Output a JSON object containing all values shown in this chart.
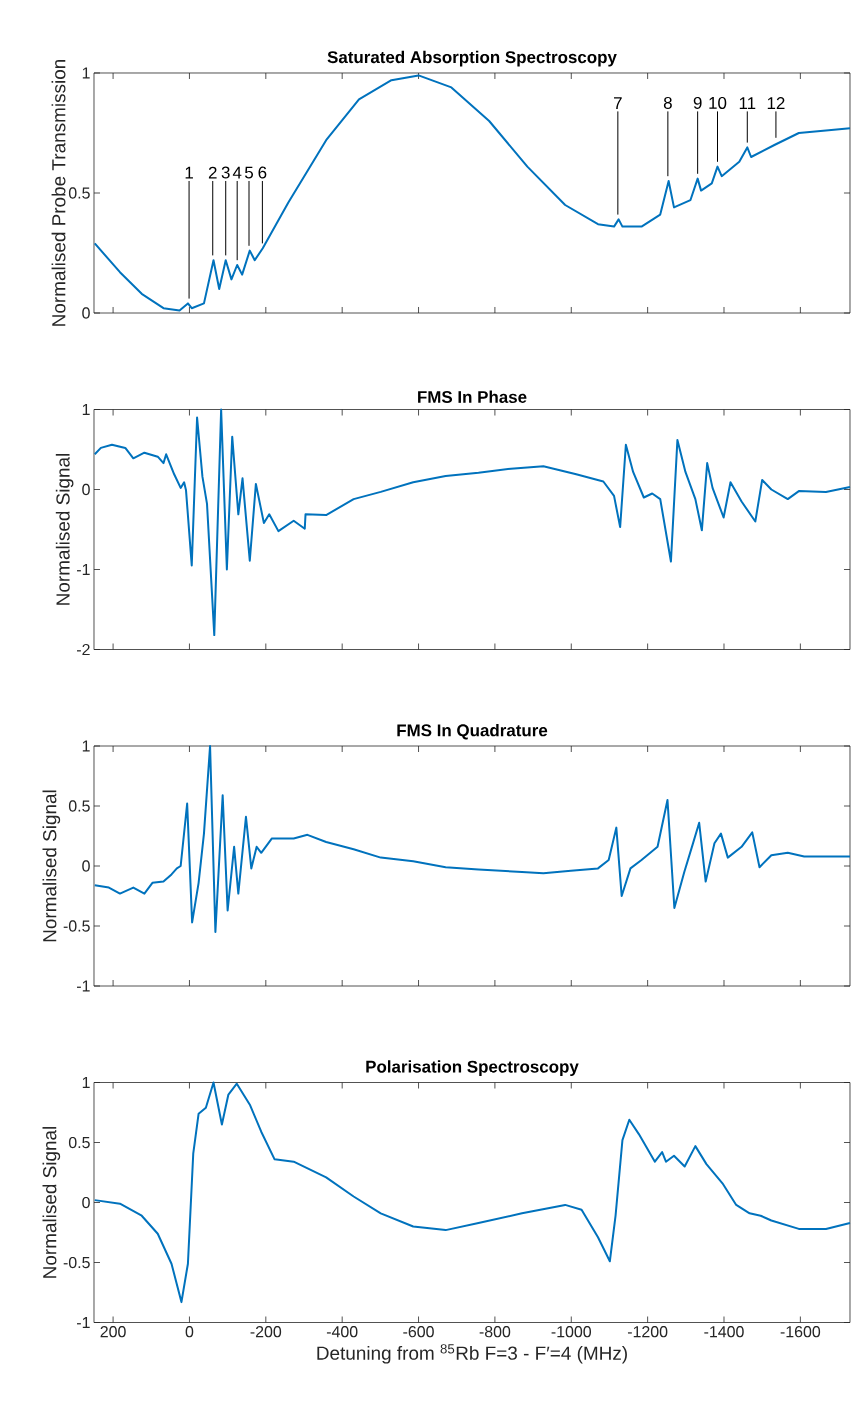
{
  "chart_data": [
    {
      "type": "line",
      "title": "Saturated Absorption Spectroscopy",
      "ylabel": "Normalised Probe Transmission",
      "color": "#0072bd",
      "xlim": [
        250,
        -1730
      ],
      "ylim": [
        0,
        1
      ],
      "xticks": [
        200,
        0,
        -200,
        -400,
        -600,
        -800,
        -1000,
        -1200,
        -1400,
        -1600
      ],
      "yticks": [
        0,
        0.5,
        1
      ],
      "tick_labels": "y",
      "x": [
        248,
        182,
        125,
        68,
        26,
        4,
        -6,
        -38,
        -63,
        -78,
        -95,
        -110,
        -125,
        -138,
        -158,
        -171,
        -192,
        -259,
        -358,
        -444,
        -529,
        -600,
        -686,
        -785,
        -885,
        -984,
        -1070,
        -1112,
        -1124,
        -1134,
        -1184,
        -1233,
        -1255,
        -1269,
        -1312,
        -1331,
        -1340,
        -1368,
        -1383,
        -1394,
        -1440,
        -1461,
        -1471,
        -1532,
        -1596,
        -1667,
        -1730
      ],
      "values": [
        0.29,
        0.17,
        0.08,
        0.02,
        0.01,
        0.04,
        0.02,
        0.04,
        0.22,
        0.1,
        0.22,
        0.14,
        0.2,
        0.16,
        0.26,
        0.22,
        0.27,
        0.46,
        0.72,
        0.89,
        0.97,
        0.99,
        0.94,
        0.8,
        0.61,
        0.45,
        0.37,
        0.36,
        0.39,
        0.36,
        0.36,
        0.41,
        0.55,
        0.44,
        0.47,
        0.56,
        0.51,
        0.54,
        0.61,
        0.57,
        0.63,
        0.69,
        0.65,
        0.7,
        0.75,
        0.76,
        0.77
      ],
      "annotations": [
        {
          "text": "1",
          "x": 1,
          "y": 0.04
        },
        {
          "text": "2",
          "x": -61,
          "y": 0.22
        },
        {
          "text": "3",
          "x": -95,
          "y": 0.22
        },
        {
          "text": "4",
          "x": -125,
          "y": 0.2
        },
        {
          "text": "5",
          "x": -156,
          "y": 0.26
        },
        {
          "text": "6",
          "x": -191,
          "y": 0.27
        },
        {
          "text": "7",
          "x": -1122,
          "y": 0.39
        },
        {
          "text": "8",
          "x": -1253,
          "y": 0.55
        },
        {
          "text": "9",
          "x": -1331,
          "y": 0.56
        },
        {
          "text": "10",
          "x": -1383,
          "y": 0.61
        },
        {
          "text": "11",
          "x": -1461,
          "y": 0.69
        },
        {
          "text": "12",
          "x": -1536,
          "y": 0.71
        }
      ]
    },
    {
      "type": "line",
      "title": "FMS In Phase",
      "ylabel": "Normalised Signal",
      "color": "#0072bd",
      "xlim": [
        250,
        -1730
      ],
      "ylim": [
        -2,
        1
      ],
      "xticks": [
        200,
        0,
        -200,
        -400,
        -600,
        -800,
        -1000,
        -1200,
        -1400,
        -1600
      ],
      "yticks": [
        -2,
        -1,
        0,
        1
      ],
      "tick_labels": "y",
      "x": [
        248,
        232,
        203,
        168,
        147,
        118,
        83,
        68,
        61,
        40,
        23,
        14,
        9,
        -6,
        -20,
        -34,
        -46,
        -65,
        -83,
        -98,
        -112,
        -128,
        -139,
        -158,
        -174,
        -195,
        -209,
        -233,
        -273,
        -302,
        -304,
        -358,
        -430,
        -501,
        -586,
        -671,
        -757,
        -842,
        -927,
        -1013,
        -1084,
        -1112,
        -1128,
        -1143,
        -1162,
        -1190,
        -1212,
        -1233,
        -1261,
        -1278,
        -1299,
        -1325,
        -1342,
        -1356,
        -1370,
        -1399,
        -1417,
        -1446,
        -1482,
        -1500,
        -1524,
        -1567,
        -1596,
        -1667,
        -1730
      ],
      "values": [
        0.44,
        0.52,
        0.56,
        0.52,
        0.39,
        0.46,
        0.41,
        0.33,
        0.44,
        0.19,
        0.02,
        0.09,
        -0.01,
        -0.95,
        0.9,
        0.16,
        -0.18,
        -1.82,
        1.0,
        -1.0,
        0.66,
        -0.31,
        0.14,
        -0.89,
        0.07,
        -0.42,
        -0.31,
        -0.52,
        -0.39,
        -0.49,
        -0.31,
        -0.32,
        -0.12,
        -0.03,
        0.09,
        0.17,
        0.21,
        0.26,
        0.29,
        0.19,
        0.1,
        -0.08,
        -0.47,
        0.56,
        0.22,
        -0.1,
        -0.05,
        -0.12,
        -0.9,
        0.62,
        0.22,
        -0.12,
        -0.51,
        0.33,
        0.02,
        -0.35,
        0.09,
        -0.15,
        -0.4,
        0.12,
        0.0,
        -0.12,
        -0.02,
        -0.03,
        0.03
      ]
    },
    {
      "type": "line",
      "title": "FMS In Quadrature",
      "ylabel": "Normalised Signal",
      "color": "#0072bd",
      "xlim": [
        250,
        -1730
      ],
      "ylim": [
        -1,
        1
      ],
      "xticks": [
        200,
        0,
        -200,
        -400,
        -600,
        -800,
        -1000,
        -1200,
        -1400,
        -1600
      ],
      "yticks": [
        -1,
        -0.5,
        0,
        0.5,
        1
      ],
      "tick_labels": "y",
      "x": [
        248,
        211,
        182,
        147,
        118,
        97,
        68,
        47,
        33,
        23,
        6,
        -7,
        -24,
        -38,
        -54,
        -68,
        -87,
        -100,
        -117,
        -128,
        -148,
        -162,
        -176,
        -188,
        -216,
        -273,
        -309,
        -358,
        -430,
        -501,
        -586,
        -671,
        -757,
        -871,
        -927,
        -999,
        -1070,
        -1098,
        -1118,
        -1132,
        -1155,
        -1184,
        -1226,
        -1252,
        -1270,
        -1296,
        -1318,
        -1335,
        -1352,
        -1375,
        -1392,
        -1410,
        -1446,
        -1474,
        -1493,
        -1524,
        -1567,
        -1610,
        -1667,
        -1730
      ],
      "values": [
        -0.16,
        -0.18,
        -0.23,
        -0.18,
        -0.23,
        -0.14,
        -0.13,
        -0.07,
        -0.02,
        0.0,
        0.52,
        -0.47,
        -0.14,
        0.27,
        1.0,
        -0.55,
        0.59,
        -0.37,
        0.16,
        -0.23,
        0.41,
        -0.02,
        0.16,
        0.11,
        0.23,
        0.23,
        0.26,
        0.2,
        0.14,
        0.07,
        0.04,
        -0.01,
        -0.03,
        -0.05,
        -0.06,
        -0.04,
        -0.02,
        0.05,
        0.32,
        -0.25,
        -0.02,
        0.05,
        0.16,
        0.55,
        -0.35,
        -0.05,
        0.18,
        0.36,
        -0.13,
        0.19,
        0.27,
        0.07,
        0.16,
        0.28,
        -0.01,
        0.09,
        0.11,
        0.08,
        0.08,
        0.08
      ]
    },
    {
      "type": "line",
      "title": "Polarisation Spectroscopy",
      "ylabel": "Normalised Signal",
      "xlabel": "Detuning from $^{85}$Rb F=3 - F′=4 (MHz)",
      "color": "#0072bd",
      "xlim": [
        250,
        -1730
      ],
      "ylim": [
        -1,
        1
      ],
      "xticks": [
        200,
        0,
        -200,
        -400,
        -600,
        -800,
        -1000,
        -1200,
        -1400,
        -1600
      ],
      "yticks": [
        -1,
        -0.5,
        0,
        0.5,
        1
      ],
      "x": [
        248,
        182,
        125,
        83,
        47,
        21,
        4,
        -10,
        -24,
        -43,
        -63,
        -85,
        -102,
        -124,
        -159,
        -188,
        -223,
        -273,
        -358,
        -430,
        -501,
        -586,
        -671,
        -757,
        -871,
        -984,
        -1027,
        -1070,
        -1101,
        -1116,
        -1134,
        -1152,
        -1177,
        -1219,
        -1238,
        -1248,
        -1269,
        -1297,
        -1325,
        -1354,
        -1396,
        -1432,
        -1467,
        -1496,
        -1524,
        -1596,
        -1667,
        -1730
      ],
      "values": [
        0.02,
        -0.01,
        -0.11,
        -0.26,
        -0.51,
        -0.83,
        -0.51,
        0.41,
        0.74,
        0.79,
        1.0,
        0.65,
        0.9,
        0.99,
        0.81,
        0.59,
        0.36,
        0.34,
        0.21,
        0.05,
        -0.09,
        -0.2,
        -0.23,
        -0.17,
        -0.09,
        -0.02,
        -0.06,
        -0.29,
        -0.49,
        -0.11,
        0.52,
        0.69,
        0.57,
        0.34,
        0.42,
        0.34,
        0.39,
        0.3,
        0.47,
        0.32,
        0.16,
        -0.02,
        -0.09,
        -0.11,
        -0.15,
        -0.22,
        -0.22,
        -0.17
      ]
    }
  ]
}
